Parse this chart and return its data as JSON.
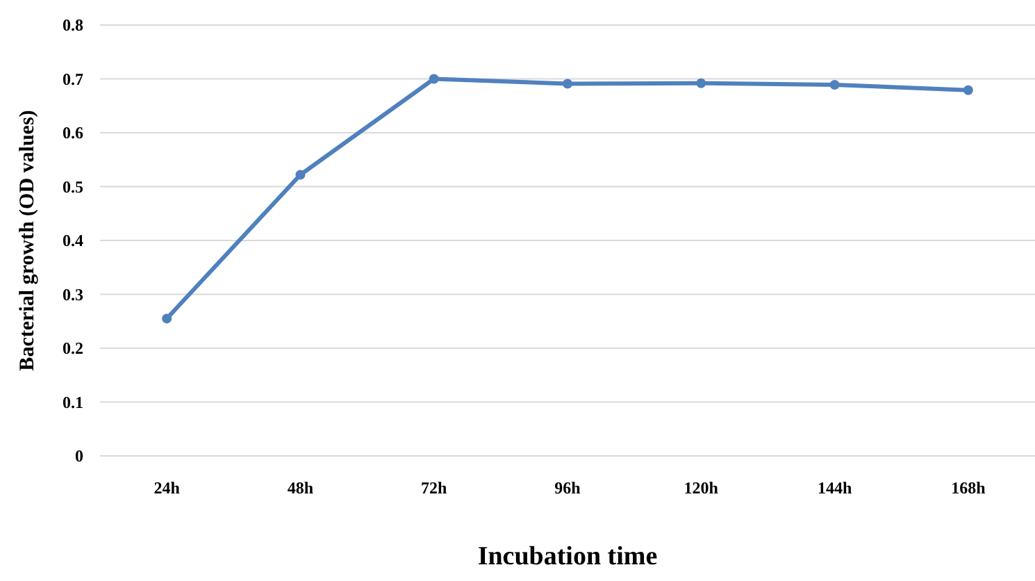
{
  "chart_data": {
    "type": "line",
    "xlabel": "Incubation time",
    "ylabel": "Bacterial growth (OD values)",
    "categories": [
      "24h",
      "48h",
      "72h",
      "96h",
      "120h",
      "144h",
      "168h"
    ],
    "series": [
      {
        "color": "#4f81bd",
        "values": [
          0.255,
          0.522,
          0.7,
          0.691,
          0.692,
          0.689,
          0.679
        ]
      }
    ],
    "ylim": [
      0,
      0.8
    ],
    "yticks": [
      {
        "value": 0,
        "label": "0"
      },
      {
        "value": 0.1,
        "label": "0.1"
      },
      {
        "value": 0.2,
        "label": "0.2"
      },
      {
        "value": 0.3,
        "label": "0.3"
      },
      {
        "value": 0.4,
        "label": "0.4"
      },
      {
        "value": 0.5,
        "label": "0.5"
      },
      {
        "value": 0.6,
        "label": "0.6"
      },
      {
        "value": 0.7,
        "label": "0.7"
      },
      {
        "value": 0.8,
        "label": "0.8"
      }
    ],
    "grid": "y",
    "marker": "circle",
    "line_style": "solid"
  }
}
